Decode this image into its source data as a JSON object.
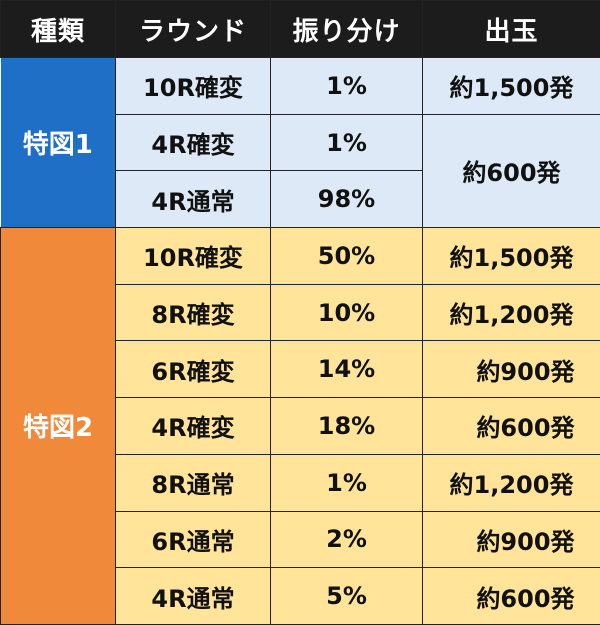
{
  "headers": [
    "種類",
    "ラウンド",
    "振り分け",
    "出玉"
  ],
  "groups": [
    {
      "kind": "特図1",
      "color": "#1f6fc6",
      "rows": [
        {
          "round": "10R確変",
          "ratio": "1%",
          "payout": "約1,500発"
        },
        {
          "round": "4R確変",
          "ratio": "1%",
          "payout": "約600発"
        },
        {
          "round": "4R通常",
          "ratio": "98%",
          "payout": ""
        }
      ]
    },
    {
      "kind": "特図2",
      "color": "#f08a3a",
      "rows": [
        {
          "round": "10R確変",
          "ratio": "50%",
          "payout": "約1,500発"
        },
        {
          "round": "8R確変",
          "ratio": "10%",
          "payout": "約1,200発"
        },
        {
          "round": "6R確変",
          "ratio": "14%",
          "payout": "約900発"
        },
        {
          "round": "4R確変",
          "ratio": "18%",
          "payout": "約600発"
        },
        {
          "round": "8R通常",
          "ratio": "1%",
          "payout": "約1,200発"
        },
        {
          "round": "6R通常",
          "ratio": "2%",
          "payout": "約900発"
        },
        {
          "round": "4R通常",
          "ratio": "5%",
          "payout": "約600発"
        }
      ]
    }
  ],
  "colors": {
    "header_bg": "#1c1c1c",
    "group1_cell_bg": "#dde9f6",
    "group2_cell_bg": "#ffe49a"
  }
}
